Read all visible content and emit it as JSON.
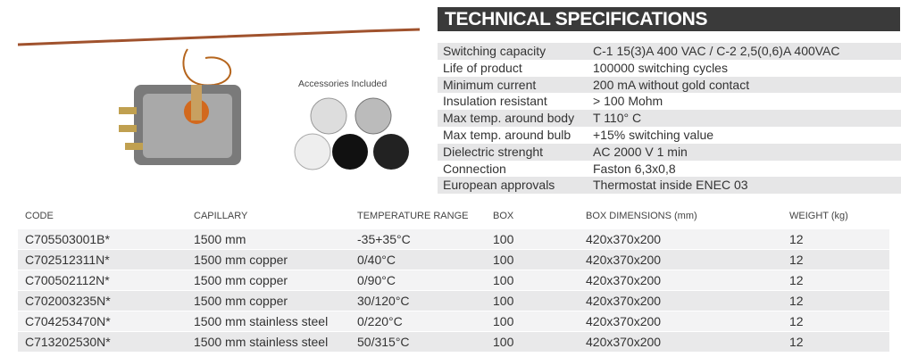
{
  "spec": {
    "title": "TECHNICAL SPECIFICATIONS",
    "rows": [
      [
        "Switching capacity",
        "C-1 15(3)A 400 VAC / C-2 2,5(0,6)A 400VAC"
      ],
      [
        "Life of product",
        "100000 switching cycles"
      ],
      [
        "Minimum current",
        "200 mA without gold contact"
      ],
      [
        "Insulation resistant",
        "> 100 Mohm"
      ],
      [
        "Max temp. around body",
        "T 110° C"
      ],
      [
        "Max temp. around bulb",
        "+15% switching value"
      ],
      [
        "Dielectric strenght",
        "AC 2000 V 1 min"
      ],
      [
        "Connection",
        "Faston 6,3x0,8"
      ],
      [
        "European approvals",
        "Thermostat inside ENEC 03"
      ]
    ]
  },
  "accessories_label": "Accessories Included",
  "table": {
    "headers": [
      "CODE",
      "CAPILLARY",
      "TEMPERATURE RANGE",
      "BOX",
      "BOX DIMENSIONS (mm)",
      "WEIGHT (kg)"
    ],
    "rows": [
      [
        "C705503001B*",
        "1500 mm",
        "-35+35°C",
        "100",
        "420x370x200",
        "12"
      ],
      [
        "C702512311N*",
        "1500 mm copper",
        "0/40°C",
        "100",
        "420x370x200",
        "12"
      ],
      [
        "C700502112N*",
        "1500 mm copper",
        "0/90°C",
        "100",
        "420x370x200",
        "12"
      ],
      [
        "C702003235N*",
        "1500 mm copper",
        "30/120°C",
        "100",
        "420x370x200",
        "12"
      ],
      [
        "C704253470N*",
        "1500 mm stainless steel",
        "0/220°C",
        "100",
        "420x370x200",
        "12"
      ],
      [
        "C713202530N*",
        "1500 mm stainless steel",
        "50/315°C",
        "100",
        "420x370x200",
        "12"
      ]
    ]
  }
}
